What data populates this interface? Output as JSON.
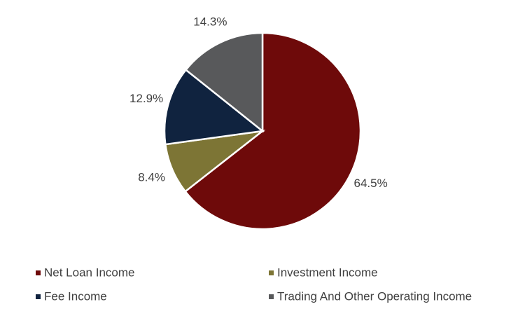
{
  "chart_data": {
    "type": "pie",
    "categories": [
      "Net Loan Income",
      "Investment Income",
      "Fee Income",
      "Trading And Other Operating Income"
    ],
    "values": [
      64.5,
      8.4,
      12.9,
      14.3
    ],
    "value_labels": [
      "64.5%",
      "8.4%",
      "12.9%",
      "14.3%"
    ],
    "colors": [
      "#6e0a0a",
      "#7d7535",
      "#10233f",
      "#58595b"
    ],
    "legend": "bottom"
  }
}
